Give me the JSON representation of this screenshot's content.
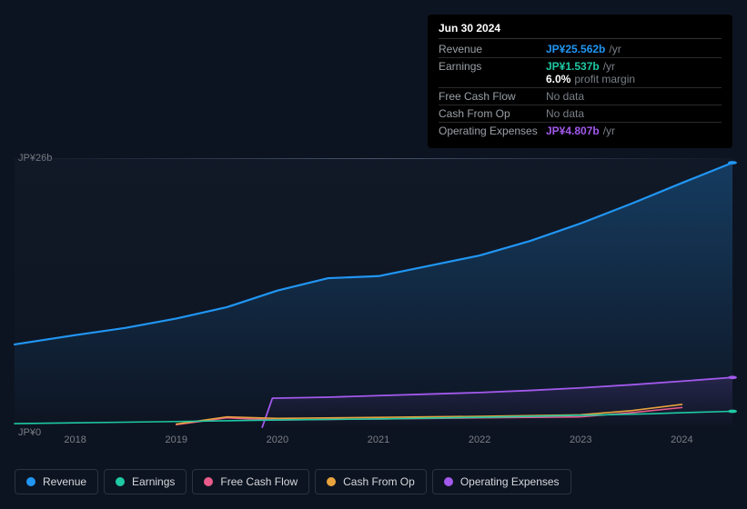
{
  "chart": {
    "type": "line-area",
    "background_color": "#0d1421",
    "plot_gradient_top": "rgba(35,45,65,0.18)",
    "plot_gradient_bottom": "rgba(20,26,40,0.05)",
    "ylim": [
      0,
      26
    ],
    "y_ticks": [
      {
        "label": "JP¥26b",
        "value": 26
      },
      {
        "label": "JP¥0",
        "value": 0
      }
    ],
    "xlim": [
      2017.4,
      2024.5
    ],
    "x_ticks": [
      "2018",
      "2019",
      "2020",
      "2021",
      "2022",
      "2023",
      "2024"
    ],
    "axis_label_color": "#7a7f87",
    "axis_font_size": 11,
    "series": [
      {
        "id": "revenue",
        "label": "Revenue",
        "color": "#2196f3",
        "line_width": 2.2,
        "area": true,
        "area_opacity_top": 0.28,
        "area_opacity_bottom": 0.0,
        "end_dot": true,
        "points": [
          [
            2017.4,
            8.0
          ],
          [
            2018.0,
            8.9
          ],
          [
            2018.5,
            9.6
          ],
          [
            2019.0,
            10.5
          ],
          [
            2019.5,
            11.6
          ],
          [
            2020.0,
            13.2
          ],
          [
            2020.5,
            14.4
          ],
          [
            2021.0,
            14.6
          ],
          [
            2021.5,
            15.6
          ],
          [
            2022.0,
            16.6
          ],
          [
            2022.5,
            18.0
          ],
          [
            2023.0,
            19.7
          ],
          [
            2023.5,
            21.6
          ],
          [
            2024.0,
            23.6
          ],
          [
            2024.5,
            25.562
          ]
        ]
      },
      {
        "id": "earnings",
        "label": "Earnings",
        "color": "#1ec9a4",
        "line_width": 1.6,
        "area": false,
        "end_dot": true,
        "points": [
          [
            2017.4,
            0.35
          ],
          [
            2018.0,
            0.42
          ],
          [
            2019.0,
            0.55
          ],
          [
            2020.0,
            0.7
          ],
          [
            2021.0,
            0.8
          ],
          [
            2022.0,
            0.95
          ],
          [
            2023.0,
            1.15
          ],
          [
            2023.7,
            1.3
          ],
          [
            2024.0,
            1.4
          ],
          [
            2024.5,
            1.537
          ]
        ]
      },
      {
        "id": "fcf",
        "label": "Free Cash Flow",
        "color": "#ea5b8b",
        "line_width": 1.6,
        "area": false,
        "end_dot": false,
        "points": [
          [
            2019.0,
            0.25
          ],
          [
            2019.5,
            0.9
          ],
          [
            2020.0,
            0.7
          ],
          [
            2021.0,
            0.8
          ],
          [
            2022.0,
            0.9
          ],
          [
            2023.0,
            1.0
          ],
          [
            2023.5,
            1.4
          ],
          [
            2024.0,
            1.9
          ]
        ]
      },
      {
        "id": "cashop",
        "label": "Cash From Op",
        "color": "#e8a33d",
        "line_width": 1.6,
        "area": false,
        "end_dot": false,
        "points": [
          [
            2019.0,
            0.3
          ],
          [
            2019.5,
            1.0
          ],
          [
            2020.0,
            0.85
          ],
          [
            2021.0,
            0.95
          ],
          [
            2022.0,
            1.05
          ],
          [
            2023.0,
            1.2
          ],
          [
            2023.5,
            1.6
          ],
          [
            2024.0,
            2.2
          ]
        ]
      },
      {
        "id": "opex",
        "label": "Operating Expenses",
        "color": "#a259ec",
        "line_width": 1.8,
        "area": true,
        "area_opacity_top": 0.15,
        "area_opacity_bottom": 0.0,
        "end_dot": true,
        "points": [
          [
            2019.85,
            0.0
          ],
          [
            2019.95,
            2.8
          ],
          [
            2020.5,
            2.9
          ],
          [
            2021.0,
            3.05
          ],
          [
            2021.5,
            3.2
          ],
          [
            2022.0,
            3.35
          ],
          [
            2022.5,
            3.55
          ],
          [
            2023.0,
            3.8
          ],
          [
            2023.5,
            4.1
          ],
          [
            2024.0,
            4.45
          ],
          [
            2024.5,
            4.807
          ]
        ]
      }
    ]
  },
  "tooltip": {
    "title": "Jun 30 2024",
    "rows": [
      {
        "label": "Revenue",
        "value": "JP¥25.562b",
        "suffix": "/yr",
        "color": "#2196f3"
      },
      {
        "label": "Earnings",
        "value": "JP¥1.537b",
        "suffix": "/yr",
        "color": "#1ec9a4",
        "margin_pct": "6.0%",
        "margin_label": "profit margin"
      },
      {
        "label": "Free Cash Flow",
        "nodata": "No data"
      },
      {
        "label": "Cash From Op",
        "nodata": "No data"
      },
      {
        "label": "Operating Expenses",
        "value": "JP¥4.807b",
        "suffix": "/yr",
        "color": "#a259ec"
      }
    ]
  },
  "legend": {
    "border_color": "#2a3342",
    "label_color": "#d5d8dc",
    "label_fontsize": 12,
    "items": [
      {
        "label": "Revenue",
        "color": "#2196f3"
      },
      {
        "label": "Earnings",
        "color": "#1ec9a4"
      },
      {
        "label": "Free Cash Flow",
        "color": "#ea5b8b"
      },
      {
        "label": "Cash From Op",
        "color": "#e8a33d"
      },
      {
        "label": "Operating Expenses",
        "color": "#a259ec"
      }
    ]
  }
}
